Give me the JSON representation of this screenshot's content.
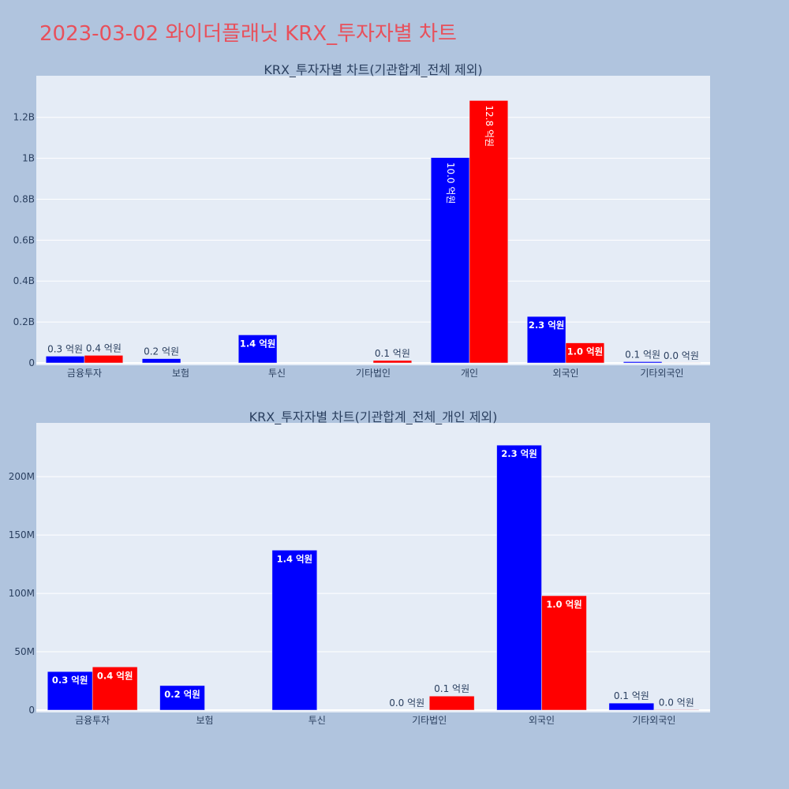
{
  "page": {
    "title": "2023-03-02 와이더플래닛 KRX_투자자별 차트"
  },
  "colors": {
    "background": "#b0c4de",
    "plot_bg": "#e5ecf6",
    "grid": "#ffffff",
    "title": "#e8505b",
    "text": "#2a3f5f",
    "series_a": "#0000ff",
    "series_b": "#ff0000"
  },
  "chart_data": [
    {
      "type": "bar",
      "title": "KRX_투자자별 차트(기관합계_전체 제외)",
      "categories": [
        "금융투자",
        "보험",
        "투신",
        "기타법인",
        "개인",
        "외국인",
        "기타외국인"
      ],
      "ylim": [
        0,
        1380000000
      ],
      "yticks": [
        0,
        200000000,
        400000000,
        600000000,
        800000000,
        1000000000,
        1200000000
      ],
      "ytick_labels": [
        "0",
        "0.2B",
        "0.4B",
        "0.6B",
        "0.8B",
        "1B",
        "1.2B"
      ],
      "grid": true,
      "series": [
        {
          "color": "#0000ff",
          "values": [
            33000000,
            21000000,
            137000000,
            null,
            1003000000,
            227000000,
            6000000
          ],
          "labels": [
            "0.3 억원",
            "0.2 억원",
            "1.4 억원",
            "",
            "10.0 억원",
            "2.3 억원",
            "0.1 억원"
          ]
        },
        {
          "color": "#ff0000",
          "values": [
            37000000,
            null,
            null,
            12000000,
            1282000000,
            98000000,
            400000
          ],
          "labels": [
            "0.4 억원",
            "",
            "",
            "0.1 억원",
            "12.8 억원",
            "1.0 억원",
            "0.0 억원"
          ]
        }
      ]
    },
    {
      "type": "bar",
      "title": "KRX_투자자별 차트(기관합계_전체_개인 제외)",
      "categories": [
        "금융투자",
        "보험",
        "투신",
        "기타법인",
        "외국인",
        "기타외국인"
      ],
      "ylim": [
        0,
        242000000
      ],
      "yticks": [
        0,
        50000000,
        100000000,
        150000000,
        200000000
      ],
      "ytick_labels": [
        "0",
        "50M",
        "100M",
        "150M",
        "200M"
      ],
      "grid": true,
      "series": [
        {
          "color": "#0000ff",
          "values": [
            33000000,
            21000000,
            137000000,
            0,
            227000000,
            6000000
          ],
          "labels": [
            "0.3 억원",
            "0.2 억원",
            "1.4 억원",
            "0.0 억원",
            "2.3 억원",
            "0.1 억원"
          ]
        },
        {
          "color": "#ff0000",
          "values": [
            37000000,
            null,
            null,
            12000000,
            98000000,
            400000
          ],
          "labels": [
            "0.4 억원",
            "",
            "",
            "0.1 억원",
            "1.0 억원",
            "0.0 억원"
          ]
        }
      ]
    }
  ]
}
